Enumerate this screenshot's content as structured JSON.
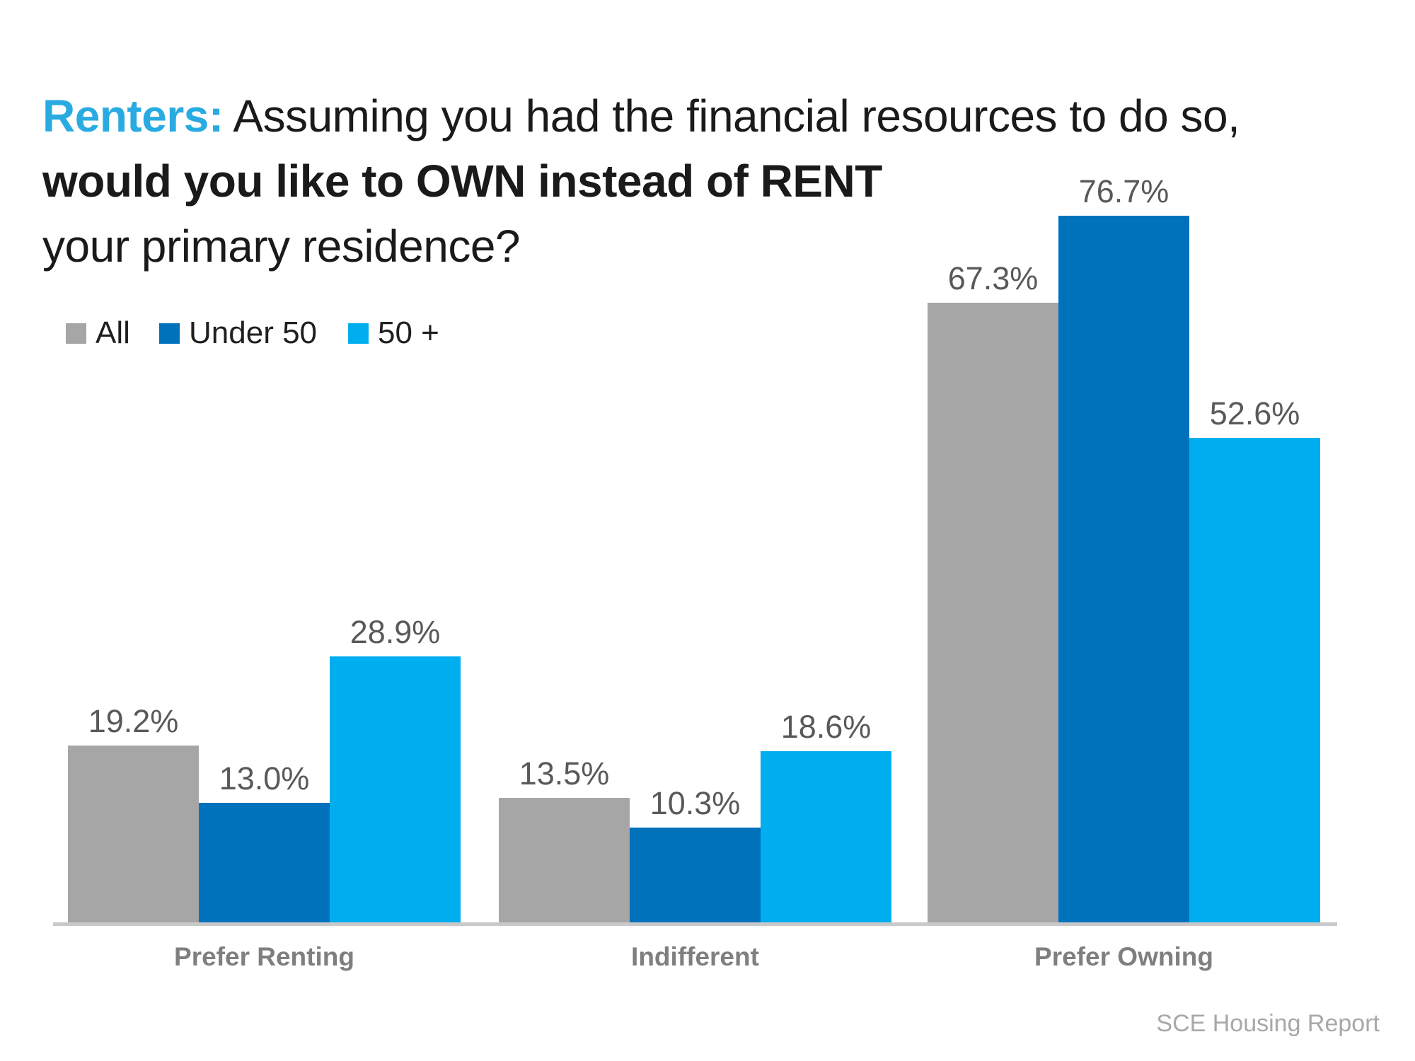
{
  "title": {
    "highlight": "Renters:",
    "line1_rest": " Assuming you had the financial resources to do so,",
    "line2": "would you like to OWN instead of RENT",
    "line3": "your primary residence?"
  },
  "legend": [
    {
      "label": "All",
      "color": "#A6A6A6"
    },
    {
      "label": "Under 50",
      "color": "#0072BC"
    },
    {
      "label": "50 +",
      "color": "#00AEEF"
    }
  ],
  "colors": {
    "title_highlight": "#29ABE2",
    "text": "#1A1A1A",
    "value_label": "#595959",
    "category_label": "#7F7F7F",
    "axis_line": "#C9C9C9",
    "footer": "#A8A8A8"
  },
  "chart_data": {
    "type": "bar",
    "title": "Renters: Assuming you had the financial resources to do so, would you like to OWN instead of RENT your primary residence?",
    "categories": [
      "Prefer Renting",
      "Indifferent",
      "Prefer Owning"
    ],
    "series": [
      {
        "name": "All",
        "color": "#A6A6A6",
        "values": [
          19.2,
          13.5,
          67.3
        ]
      },
      {
        "name": "Under 50",
        "color": "#0072BC",
        "values": [
          13.0,
          10.3,
          76.7
        ]
      },
      {
        "name": "50 +",
        "color": "#00AEEF",
        "values": [
          28.9,
          18.6,
          52.6
        ]
      }
    ],
    "value_suffix": "%",
    "data_labels": true,
    "xlabel": "",
    "ylabel": "",
    "ylim": [
      0,
      80
    ],
    "grid": false,
    "legend_position": "top-left"
  },
  "footer": "SCE Housing Report"
}
